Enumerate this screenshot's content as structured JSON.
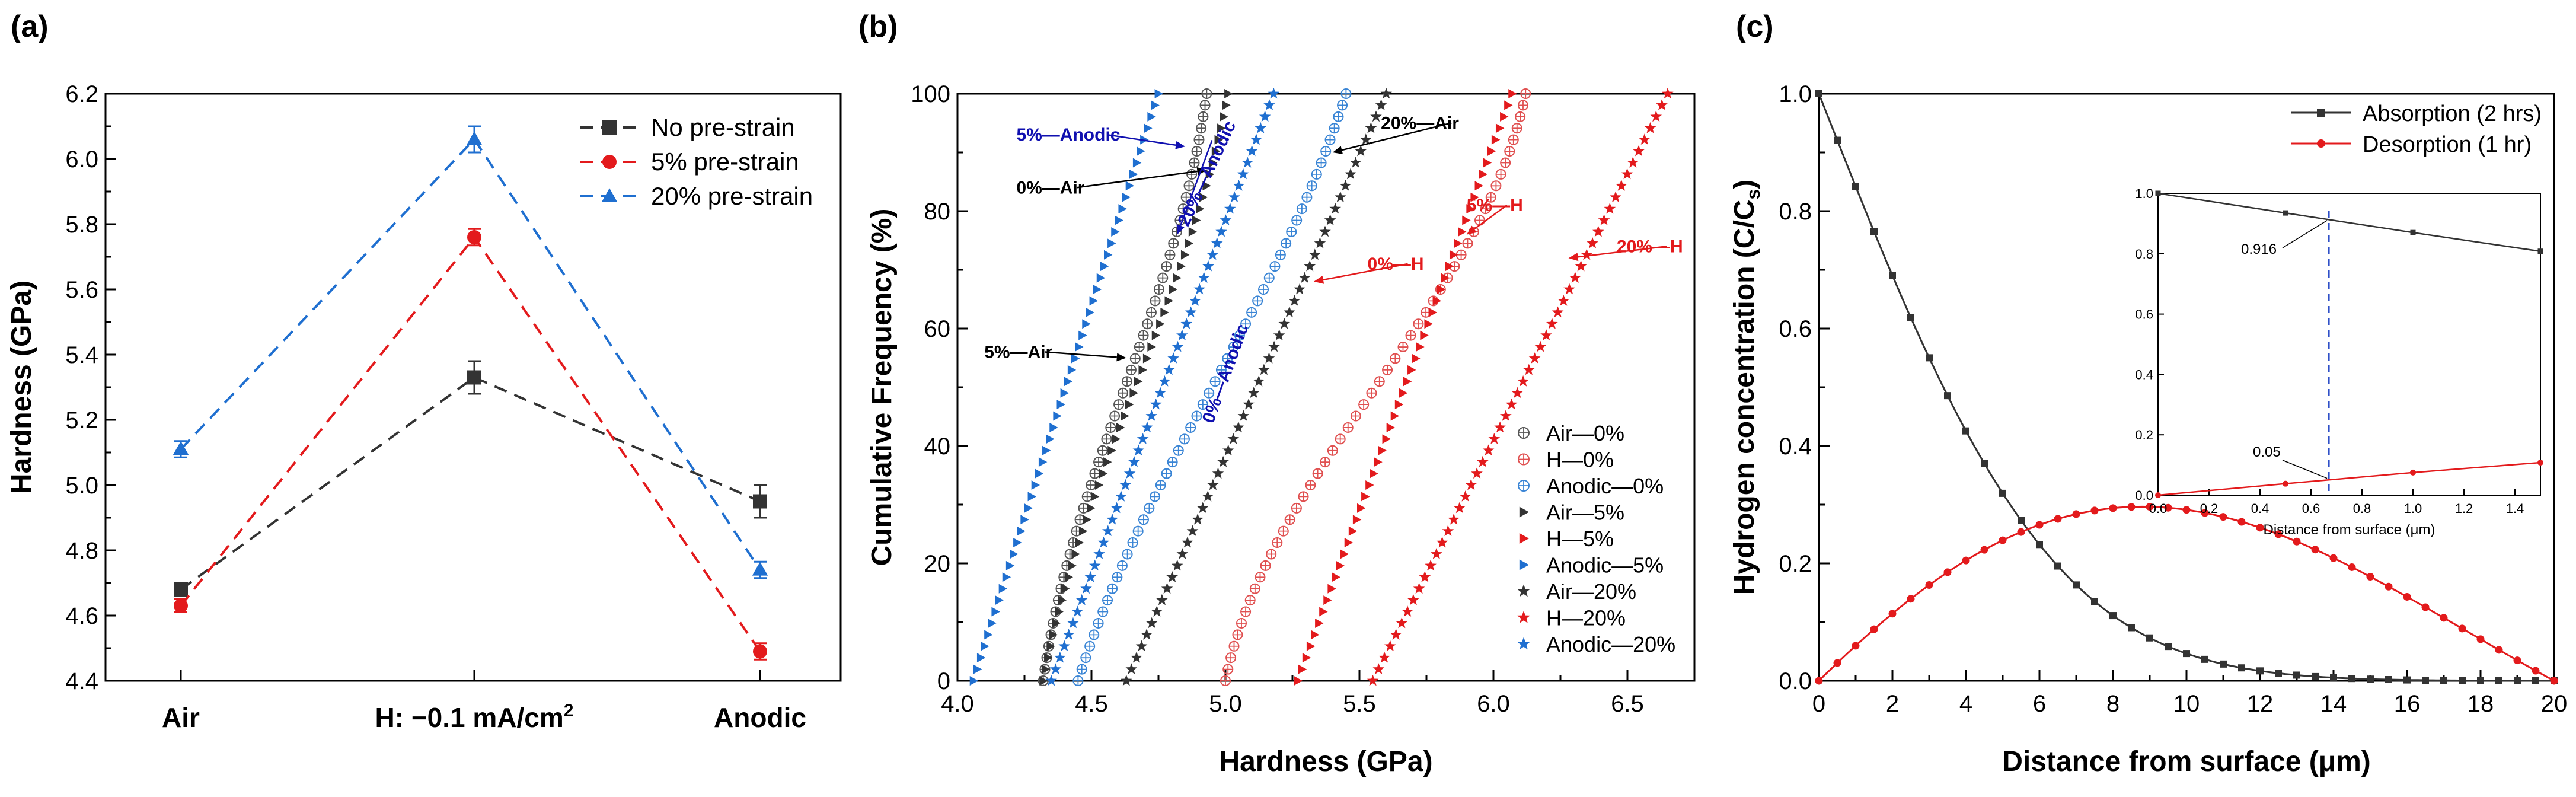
{
  "chart_data": [
    {
      "panel_label": "(a)",
      "type": "line",
      "categories": [
        "Air",
        "H: −0.1 mA/cm",
        "Anodic"
      ],
      "category_superscript": "2",
      "ylabel": "Hardness (GPa)",
      "xlabel": "",
      "ylim": [
        4.4,
        6.2
      ],
      "yticks": [
        "4.4",
        "4.6",
        "4.8",
        "5.0",
        "5.2",
        "5.4",
        "5.6",
        "5.8",
        "6.0",
        "6.2"
      ],
      "legend_position": "top-right",
      "series": [
        {
          "name": "No pre-strain",
          "color": "#333333",
          "marker": "square",
          "values": [
            4.68,
            5.33,
            4.95
          ],
          "errors": [
            0.02,
            0.05,
            0.05
          ]
        },
        {
          "name": "5% pre-strain",
          "color": "#e31a1c",
          "marker": "circle",
          "values": [
            4.63,
            5.76,
            4.49
          ],
          "errors": [
            0.02,
            0.025,
            0.025
          ]
        },
        {
          "name": "20% pre-strain",
          "color": "#1f6fd0",
          "marker": "triangle",
          "values": [
            5.11,
            6.06,
            4.74
          ],
          "errors": [
            0.025,
            0.04,
            0.025
          ]
        }
      ]
    },
    {
      "panel_label": "(b)",
      "type": "scatter",
      "xlabel": "Hardness (GPa)",
      "ylabel": "Cumulative Frequency (%)",
      "xlim": [
        4.0,
        6.75
      ],
      "ylim": [
        0,
        100
      ],
      "xticks": [
        "4.0",
        "4.5",
        "5.0",
        "5.5",
        "6.0",
        "6.5"
      ],
      "yticks": [
        "0",
        "20",
        "40",
        "60",
        "80",
        "100"
      ],
      "legend_position": "bottom-right",
      "series": [
        {
          "name": "Air—0%",
          "color": "#555555",
          "marker": "circle-plus",
          "min": 4.32,
          "max": 4.93,
          "steep": 0.5
        },
        {
          "name": "H—0%",
          "color": "#e05050",
          "marker": "circle-plus",
          "min": 5.0,
          "max": 6.12,
          "steep": 0.6
        },
        {
          "name": "Anodic—0%",
          "color": "#3a85d5",
          "marker": "circle-plus",
          "min": 4.45,
          "max": 5.45,
          "steep": 0.3
        },
        {
          "name": "Air—5%",
          "color": "#333333",
          "marker": "triangle-right",
          "min": 4.32,
          "max": 5.01,
          "steep": 0.4
        },
        {
          "name": "H—5%",
          "color": "#e31a1c",
          "marker": "triangle-right",
          "min": 5.27,
          "max": 6.07,
          "steep": 0.0
        },
        {
          "name": "Anodic—5%",
          "color": "#1f6fd0",
          "marker": "triangle-right",
          "min": 4.06,
          "max": 4.75,
          "steep": 0.0
        },
        {
          "name": "Air—20%",
          "color": "#333333",
          "marker": "star",
          "min": 4.63,
          "max": 5.6,
          "steep": 0.0
        },
        {
          "name": "H—20%",
          "color": "#e31a1c",
          "marker": "star",
          "min": 5.55,
          "max": 6.65,
          "steep": 0.0
        },
        {
          "name": "Anodic—20%",
          "color": "#1f6fd0",
          "marker": "star",
          "min": 4.35,
          "max": 5.18,
          "steep": 0.0
        }
      ],
      "annotations": [
        {
          "text": "5%—Anodic",
          "color": "#1010b0",
          "x": 4.22,
          "y": 92,
          "ax": 4.85,
          "ay": 91
        },
        {
          "text": "0%—Air",
          "color": "#000000",
          "x": 4.22,
          "y": 83,
          "ax": 4.93,
          "ay": 87
        },
        {
          "text": "20%—Anodic",
          "color": "#1010b0",
          "x": 4.95,
          "y": 86,
          "ax": 4.82,
          "ay": 76,
          "rotate": -65
        },
        {
          "text": "20%—Air",
          "color": "#000000",
          "x": 5.58,
          "y": 94,
          "ax": 5.4,
          "ay": 90
        },
        {
          "text": "5%—H",
          "color": "#e31a1c",
          "x": 5.9,
          "y": 80,
          "ax": 5.9,
          "ay": 76
        },
        {
          "text": "0%—H",
          "color": "#e31a1c",
          "x": 5.53,
          "y": 70,
          "ax": 5.33,
          "ay": 68
        },
        {
          "text": "20%—H",
          "color": "#e31a1c",
          "x": 6.46,
          "y": 73,
          "ax": 6.28,
          "ay": 72
        },
        {
          "text": "5%—Air",
          "color": "#000000",
          "x": 4.1,
          "y": 55,
          "ax": 4.63,
          "ay": 55
        },
        {
          "text": "0%—Anodic",
          "color": "#1010b0",
          "x": 5.02,
          "y": 52,
          "rotate": -70
        }
      ]
    },
    {
      "panel_label": "(c)",
      "type": "line",
      "xlabel": "Distance from surface (μm)",
      "ylabel": "Hydrogen concentration (C/C",
      "ylabel_sub": "s",
      "xlim": [
        0,
        20
      ],
      "ylim": [
        0,
        1.0
      ],
      "xticks": [
        "0",
        "2",
        "4",
        "6",
        "8",
        "10",
        "12",
        "14",
        "16",
        "18",
        "20"
      ],
      "yticks": [
        "0.0",
        "0.2",
        "0.4",
        "0.6",
        "0.8",
        "1.0"
      ],
      "legend_position": "top-right",
      "series": [
        {
          "name": "Absorption (2 hrs)",
          "color": "#333333",
          "marker": "square",
          "model": "erfc",
          "param": 7.1
        },
        {
          "name": "Desorption (1 hr)",
          "color": "#e31a1c",
          "marker": "circle",
          "model": "bump",
          "param": 0.248
        }
      ],
      "inset": {
        "xlabel": "Distance from surface (μm)",
        "xlim": [
          0,
          1.5
        ],
        "ylim": [
          0,
          1.0
        ],
        "xticks": [
          "0.0",
          "0.2",
          "0.4",
          "0.6",
          "0.8",
          "1.0",
          "1.2",
          "1.4"
        ],
        "yticks": [
          "0.0",
          "0.2",
          "0.4",
          "0.6",
          "0.8",
          "1.0"
        ],
        "marker_x": 0.67,
        "abs_label": "0.916",
        "des_label": "0.05",
        "abs_points": [
          [
            0,
            1.0
          ],
          [
            0.5,
            0.935
          ],
          [
            1.0,
            0.87
          ],
          [
            1.5,
            0.808
          ]
        ],
        "des_points": [
          [
            0,
            0.0
          ],
          [
            0.5,
            0.038
          ],
          [
            1.0,
            0.075
          ],
          [
            1.5,
            0.108
          ]
        ]
      }
    }
  ]
}
